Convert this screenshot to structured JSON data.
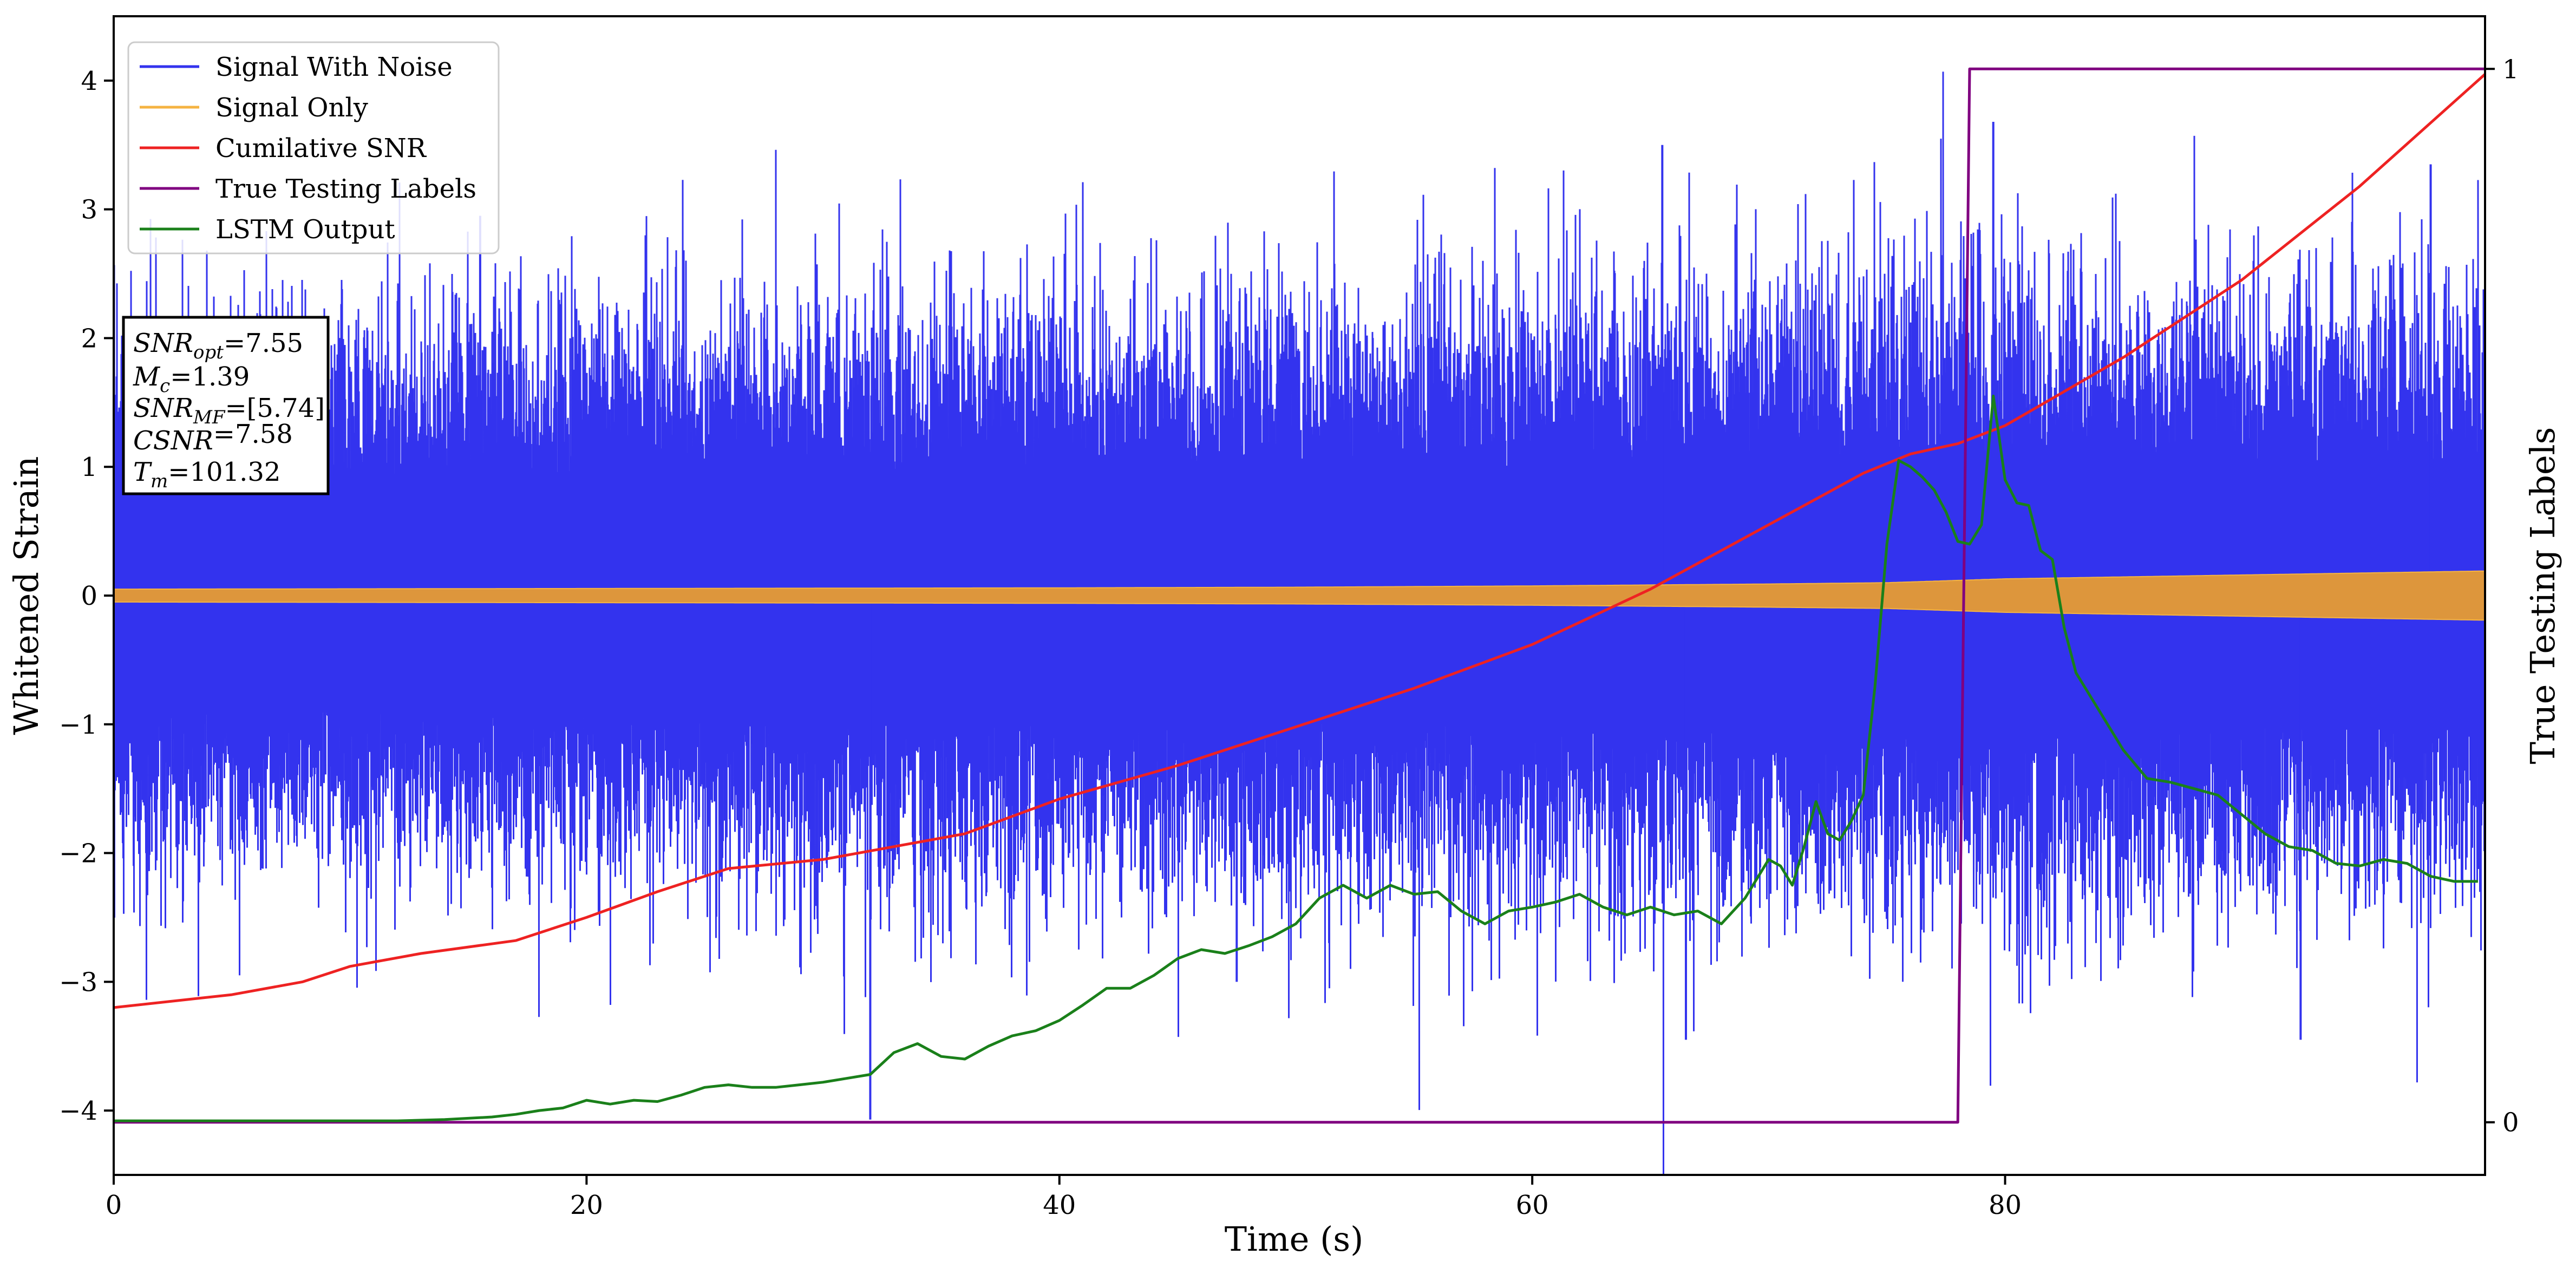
{
  "chart_data": {
    "type": "line",
    "xlabel": "Time (s)",
    "ylabel": "Whitened Strain",
    "y2label": "True Testing Labels",
    "xlim": [
      0,
      100.3
    ],
    "ylim": [
      -4.5,
      4.5
    ],
    "y2lim": [
      -0.05,
      1.05
    ],
    "xticks": [
      0,
      20,
      40,
      60,
      80
    ],
    "yticks": [
      -4,
      -3,
      -2,
      -1,
      0,
      1,
      2,
      3,
      4
    ],
    "y2ticks": [
      0,
      1
    ],
    "grid": false,
    "legend": {
      "location": "upper-left",
      "entries": [
        {
          "label": "Signal With Noise",
          "color": "#3333ee"
        },
        {
          "label": "Signal Only",
          "color": "#f5b342"
        },
        {
          "label": "Cumilative SNR",
          "color": "#ee2222"
        },
        {
          "label": "True Testing Labels",
          "color": "#800080"
        },
        {
          "label": "LSTM Output",
          "color": "#1a801a"
        }
      ]
    },
    "info_box": [
      {
        "sym": "SNR",
        "sub": "opt",
        "rest": "=7.55"
      },
      {
        "sym": "M",
        "sub": "c",
        "rest": "=1.39"
      },
      {
        "sym": "SNR",
        "sub": "MF",
        "rest": "=[5.74]"
      },
      {
        "sym": "CSNR",
        "sub": "",
        "rest": "=7.58"
      },
      {
        "sym": "T",
        "sub": "m",
        "rest": "=101.32"
      }
    ],
    "series": [
      {
        "name": "Signal With Noise",
        "color": "#3333ee",
        "kind": "noise",
        "x_range": [
          0,
          100.3
        ],
        "band_upper": [
          [
            0,
            1.6
          ],
          [
            50,
            1.75
          ],
          [
            75,
            1.9
          ],
          [
            100.3,
            1.75
          ]
        ],
        "band_lower": [
          [
            0,
            -1.6
          ],
          [
            50,
            -1.75
          ],
          [
            75,
            -1.9
          ],
          [
            100.3,
            -1.75
          ]
        ],
        "notable_points": [
          [
            32,
            -4.07
          ],
          [
            15.5,
            2.95
          ],
          [
            65.5,
            3.5
          ],
          [
            79.5,
            3.68
          ],
          [
            98,
            3.35
          ],
          [
            47.5,
            -3.0
          ],
          [
            66.5,
            -3.45
          ],
          [
            92.5,
            -3.45
          ],
          [
            0,
            -3.35
          ]
        ]
      },
      {
        "name": "Signal Only",
        "color": "#f5b342",
        "kind": "oscillation",
        "x": [
          0,
          20,
          40,
          50,
          60,
          70,
          75,
          80,
          90,
          100
        ],
        "amplitude": [
          0.05,
          0.055,
          0.06,
          0.065,
          0.075,
          0.09,
          0.1,
          0.13,
          0.16,
          0.19
        ]
      },
      {
        "name": "Cumilative SNR",
        "color": "#ee2222",
        "x": [
          0,
          5,
          8,
          10,
          13,
          17,
          20,
          23,
          26,
          30,
          33,
          36,
          40,
          45,
          50,
          55,
          60,
          65,
          70,
          72,
          74,
          76,
          78,
          80,
          85,
          90,
          95,
          100.3
        ],
        "y": [
          -3.2,
          -3.1,
          -3.0,
          -2.88,
          -2.78,
          -2.68,
          -2.5,
          -2.3,
          -2.12,
          -2.05,
          -1.95,
          -1.85,
          -1.58,
          -1.32,
          -1.02,
          -0.72,
          -0.38,
          0.05,
          0.55,
          0.75,
          0.95,
          1.1,
          1.18,
          1.32,
          1.85,
          2.45,
          3.18,
          4.05
        ]
      },
      {
        "name": "True Testing Labels",
        "color": "#800080",
        "axis": "right",
        "x": [
          0,
          78,
          78.5,
          100.3
        ],
        "y": [
          0,
          0,
          1,
          1
        ]
      },
      {
        "name": "LSTM Output",
        "color": "#1a801a",
        "x": [
          0,
          12,
          14,
          16,
          17,
          18,
          19,
          20,
          21,
          22,
          23,
          24,
          25,
          26,
          27,
          28,
          29,
          30,
          31,
          32,
          33,
          34,
          35,
          36,
          37,
          38,
          39,
          40,
          41,
          42,
          43,
          44,
          45,
          46,
          47,
          48,
          49,
          50,
          51,
          52,
          53,
          54,
          55,
          56,
          57,
          58,
          59,
          60,
          61,
          62,
          63,
          64,
          65,
          66,
          67,
          68,
          69,
          70,
          70.5,
          71,
          71.5,
          72,
          72.5,
          73,
          73.5,
          74,
          74.5,
          75,
          75.5,
          76,
          76.5,
          77,
          77.5,
          78,
          78.5,
          79,
          79.5,
          80,
          80.5,
          81,
          81.5,
          82,
          82.5,
          83,
          84,
          85,
          86,
          87,
          88,
          89,
          90,
          91,
          92,
          93,
          94,
          95,
          96,
          97,
          98,
          99,
          100
        ],
        "y": [
          -4.08,
          -4.08,
          -4.07,
          -4.05,
          -4.03,
          -4.0,
          -3.98,
          -3.92,
          -3.95,
          -3.92,
          -3.93,
          -3.88,
          -3.82,
          -3.8,
          -3.82,
          -3.82,
          -3.8,
          -3.78,
          -3.75,
          -3.72,
          -3.55,
          -3.48,
          -3.58,
          -3.6,
          -3.5,
          -3.42,
          -3.38,
          -3.3,
          -3.18,
          -3.05,
          -3.05,
          -2.95,
          -2.82,
          -2.75,
          -2.78,
          -2.72,
          -2.65,
          -2.55,
          -2.35,
          -2.25,
          -2.35,
          -2.25,
          -2.32,
          -2.3,
          -2.45,
          -2.55,
          -2.45,
          -2.42,
          -2.38,
          -2.32,
          -2.42,
          -2.48,
          -2.42,
          -2.48,
          -2.45,
          -2.55,
          -2.35,
          -2.05,
          -2.1,
          -2.25,
          -1.95,
          -1.6,
          -1.85,
          -1.9,
          -1.75,
          -1.55,
          -0.7,
          0.4,
          1.05,
          1.0,
          0.92,
          0.82,
          0.65,
          0.42,
          0.4,
          0.55,
          1.55,
          0.9,
          0.72,
          0.7,
          0.35,
          0.28,
          -0.25,
          -0.6,
          -0.9,
          -1.2,
          -1.42,
          -1.45,
          -1.5,
          -1.55,
          -1.7,
          -1.85,
          -1.95,
          -1.98,
          -2.08,
          -2.1,
          -2.05,
          -2.08,
          -2.18,
          -2.22,
          -2.22
        ]
      }
    ]
  }
}
